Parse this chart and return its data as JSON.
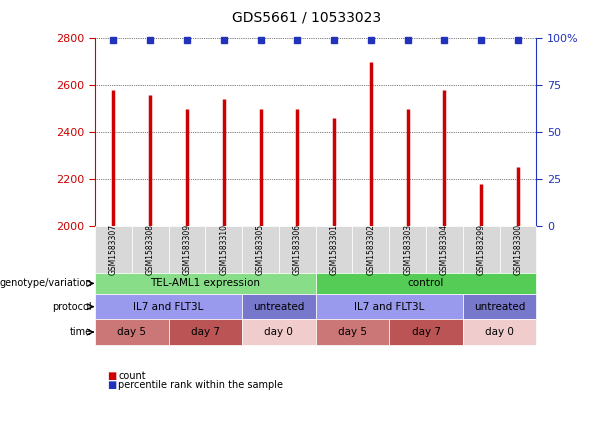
{
  "title": "GDS5661 / 10533023",
  "samples": [
    "GSM1583307",
    "GSM1583308",
    "GSM1583309",
    "GSM1583310",
    "GSM1583305",
    "GSM1583306",
    "GSM1583301",
    "GSM1583302",
    "GSM1583303",
    "GSM1583304",
    "GSM1583299",
    "GSM1583300"
  ],
  "counts": [
    2580,
    2560,
    2500,
    2540,
    2500,
    2500,
    2460,
    2700,
    2500,
    2580,
    2180,
    2250
  ],
  "percentiles": [
    99,
    99,
    99,
    99,
    99,
    99,
    99,
    99,
    99,
    99,
    99,
    99
  ],
  "ylim_left": [
    2000,
    2800
  ],
  "ylim_right": [
    0,
    100
  ],
  "yticks_left": [
    2000,
    2200,
    2400,
    2600,
    2800
  ],
  "yticks_right": [
    0,
    25,
    50,
    75,
    100
  ],
  "bar_color": "#cc0000",
  "dot_color": "#2233bb",
  "sample_bg_color": "#d8d8d8",
  "plot_bg_color": "#ffffff",
  "genotype_groups": [
    {
      "label": "TEL-AML1 expression",
      "start": 0,
      "end": 6,
      "color": "#88dd88"
    },
    {
      "label": "control",
      "start": 6,
      "end": 12,
      "color": "#55cc55"
    }
  ],
  "protocol_groups": [
    {
      "label": "IL7 and FLT3L",
      "start": 0,
      "end": 4,
      "color": "#9999ee"
    },
    {
      "label": "untreated",
      "start": 4,
      "end": 6,
      "color": "#7777cc"
    },
    {
      "label": "IL7 and FLT3L",
      "start": 6,
      "end": 10,
      "color": "#9999ee"
    },
    {
      "label": "untreated",
      "start": 10,
      "end": 12,
      "color": "#7777cc"
    }
  ],
  "time_groups": [
    {
      "label": "day 5",
      "start": 0,
      "end": 2,
      "color": "#cc7777"
    },
    {
      "label": "day 7",
      "start": 2,
      "end": 4,
      "color": "#bb5555"
    },
    {
      "label": "day 0",
      "start": 4,
      "end": 6,
      "color": "#f0cccc"
    },
    {
      "label": "day 5",
      "start": 6,
      "end": 8,
      "color": "#cc7777"
    },
    {
      "label": "day 7",
      "start": 8,
      "end": 10,
      "color": "#bb5555"
    },
    {
      "label": "day 0",
      "start": 10,
      "end": 12,
      "color": "#f0cccc"
    }
  ],
  "row_labels": [
    "genotype/variation",
    "protocol",
    "time"
  ],
  "legend_items": [
    {
      "label": "count",
      "color": "#cc0000"
    },
    {
      "label": "percentile rank within the sample",
      "color": "#2233bb"
    }
  ]
}
